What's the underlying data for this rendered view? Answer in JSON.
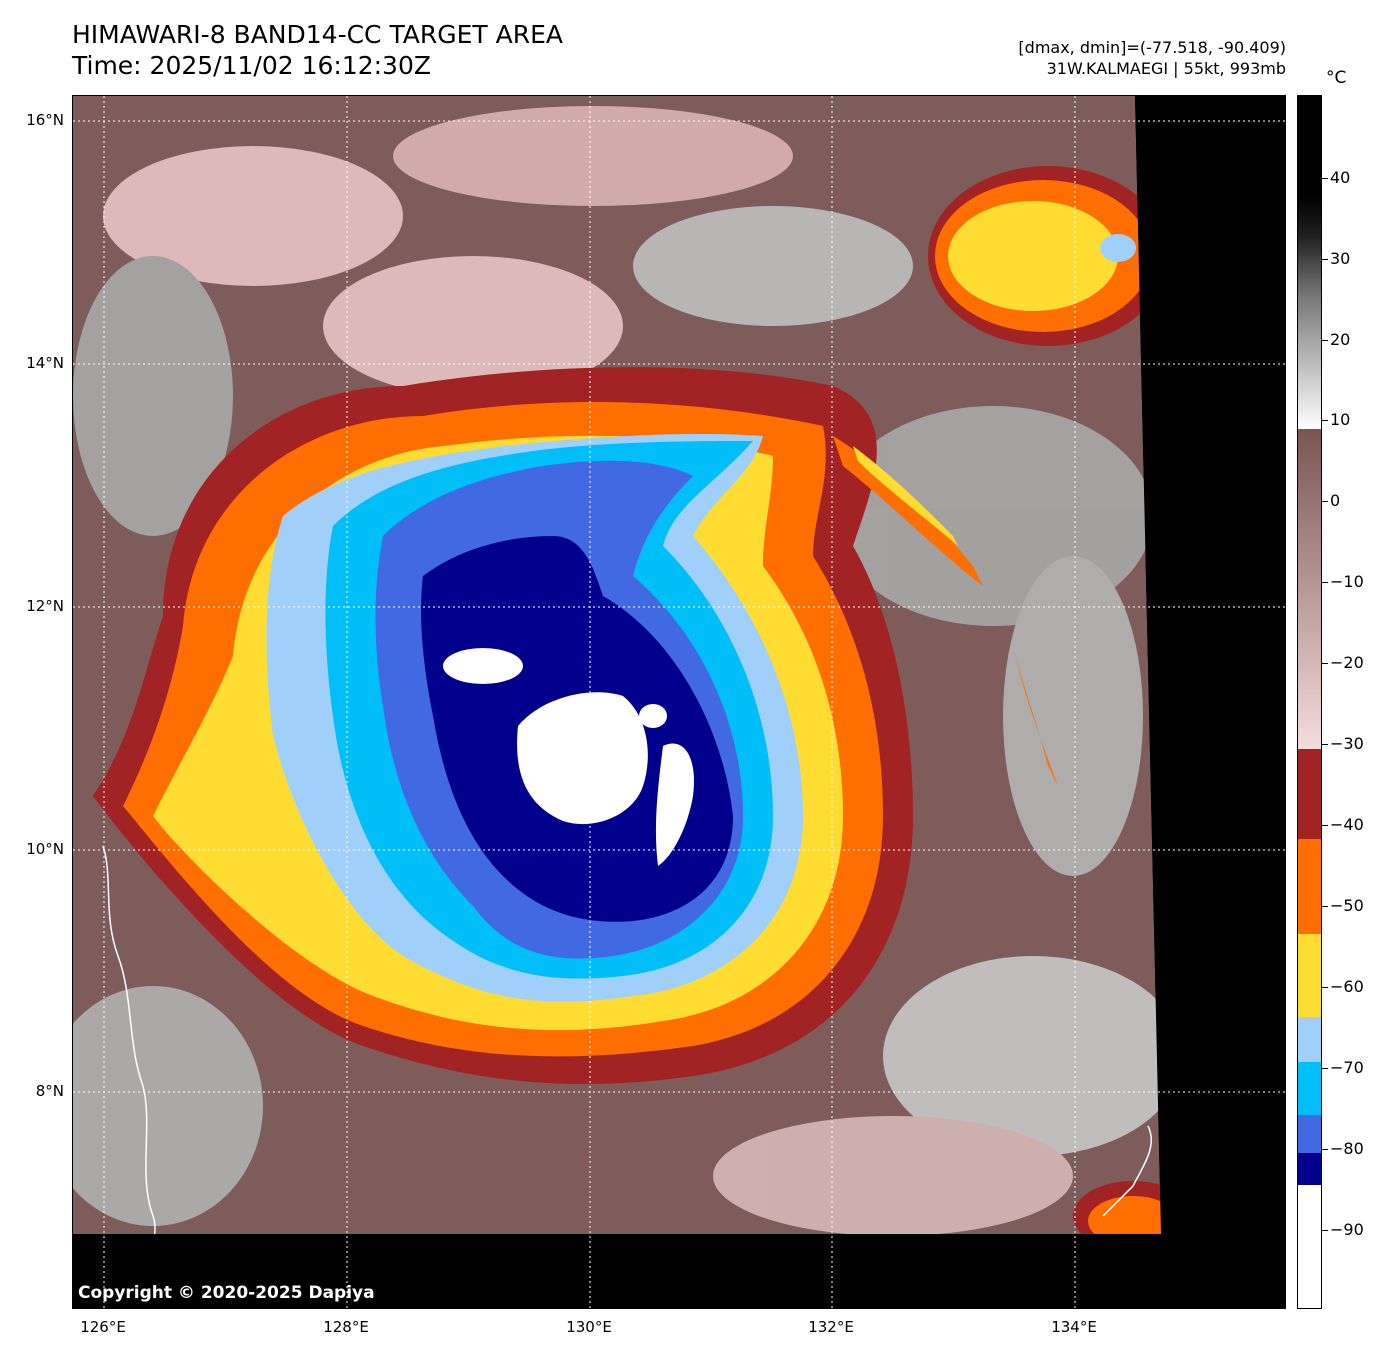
{
  "title": {
    "line1": "HIMAWARI-8 BAND14-CC TARGET AREA",
    "line2": "Time: 2025/11/02 16:12:30Z"
  },
  "stats": {
    "range": "[dmax, dmin]=(-77.518, -90.409)",
    "storm": "31W.KALMAEGI | 55kt, 993mb"
  },
  "map": {
    "lat_labels": [
      "16°N",
      "14°N",
      "12°N",
      "10°N",
      "8°N"
    ],
    "lon_labels": [
      "126°E",
      "128°E",
      "130°E",
      "132°E",
      "134°E"
    ],
    "copyright": "Copyright © 2020-2025 Dapiya"
  },
  "colorbar": {
    "unit": "°C",
    "tick_labels": [
      "40",
      "30",
      "20",
      "10",
      "0",
      "−10",
      "−20",
      "−30",
      "−40",
      "−50",
      "−60",
      "−70",
      "−80",
      "−90"
    ],
    "colors": {
      "clear_warm": "#000000",
      "grey_mid": "#888888",
      "brown": "#6b4a47",
      "pink": "#f2d2d2",
      "dark_red": "#a12323",
      "orange": "#ff6e00",
      "yellow": "#ffdc32",
      "light_blue": "#a0d0fa",
      "cyan": "#00bef8",
      "royal_blue": "#4169e1",
      "navy": "#00008c",
      "white": "#ffffff"
    }
  }
}
